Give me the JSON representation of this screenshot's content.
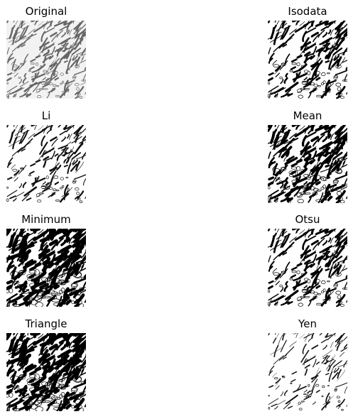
{
  "figure": {
    "panels": [
      {
        "id": "original",
        "title": "Original",
        "tone": "original"
      },
      {
        "id": "isodata",
        "title": "Isodata",
        "tone": "medium"
      },
      {
        "id": "li",
        "title": "Li",
        "tone": "light"
      },
      {
        "id": "mean",
        "title": "Mean",
        "tone": "dark"
      },
      {
        "id": "minimum",
        "title": "Minimum",
        "tone": "darkest"
      },
      {
        "id": "otsu",
        "title": "Otsu",
        "tone": "medium"
      },
      {
        "id": "triangle",
        "title": "Triangle",
        "tone": "darkest"
      },
      {
        "id": "yen",
        "title": "Yen",
        "tone": "lightest"
      }
    ]
  }
}
